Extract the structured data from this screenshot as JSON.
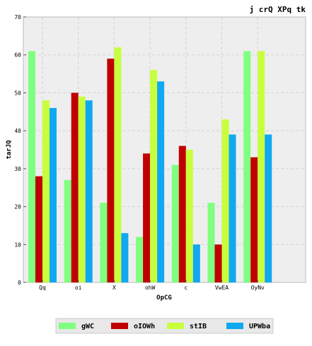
{
  "chart_data": {
    "type": "bar",
    "title": "j crQ XPq tk",
    "xlabel": "OpCG",
    "ylabel": "tarJQ",
    "ylim": [
      0,
      70
    ],
    "yticks": [
      0,
      10,
      20,
      30,
      40,
      50,
      60,
      70
    ],
    "grid": true,
    "legend_position": "bottom-center",
    "categories": [
      "Qq",
      "oi",
      "X",
      "ohW",
      "c",
      "VwEA",
      "OyNv"
    ],
    "series": [
      {
        "name": "gWC",
        "color": "#80ff80",
        "values": [
          61,
          27,
          21,
          12,
          31,
          21,
          61
        ]
      },
      {
        "name": "oIOWh",
        "color": "#c00000",
        "values": [
          28,
          50,
          59,
          34,
          36,
          10,
          33
        ]
      },
      {
        "name": "stIB",
        "color": "#c8ff3c",
        "values": [
          48,
          49,
          62,
          56,
          35,
          43,
          61
        ]
      },
      {
        "name": "UPWba",
        "color": "#10a8f0",
        "values": [
          46,
          48,
          13,
          53,
          10,
          39,
          39
        ]
      }
    ]
  }
}
